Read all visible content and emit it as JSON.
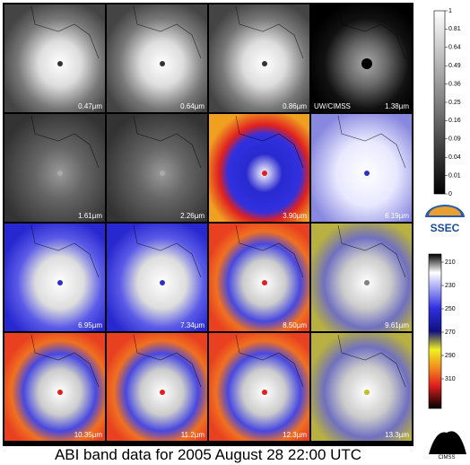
{
  "panels": [
    {
      "label": "0.47µm"
    },
    {
      "label": "0.64µm"
    },
    {
      "label": "0.86µm"
    },
    {
      "label": "1.38µm"
    },
    {
      "label": "1.61µm"
    },
    {
      "label": "2.26µm"
    },
    {
      "label": "3.90µm"
    },
    {
      "label": "6.19µm"
    },
    {
      "label": "6.95µm"
    },
    {
      "label": "7.34µm"
    },
    {
      "label": "8.50µm"
    },
    {
      "label": "9.61µm"
    },
    {
      "label": "10.35µm"
    },
    {
      "label": "11.2µm"
    },
    {
      "label": "12.3µm"
    },
    {
      "label": "13.3µm"
    }
  ],
  "watermark": "UW/CIMSS",
  "reflectance_scale": {
    "ticks": [
      1,
      0.81,
      0.64,
      0.49,
      0.36,
      0.25,
      0.16,
      0.09,
      0.04,
      0.01,
      0
    ]
  },
  "temperature_scale": {
    "ticks": [
      210,
      230,
      250,
      270,
      290,
      310
    ]
  },
  "logos": {
    "ssec": "SSEC",
    "cimss": "CIMSS"
  },
  "caption": "ABI band data for 2005 August 28 22:00 UTC"
}
